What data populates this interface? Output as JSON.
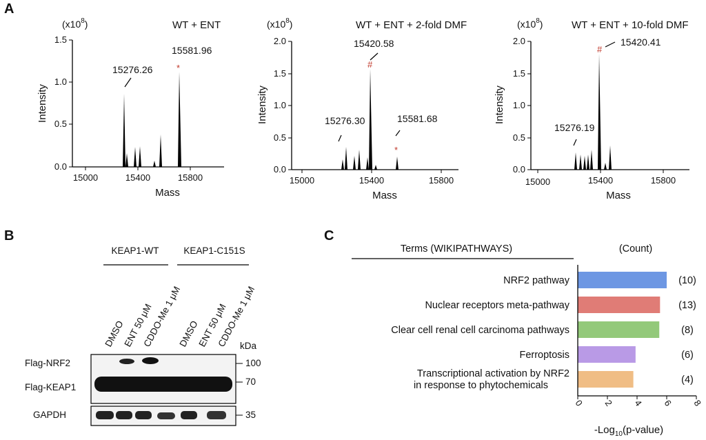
{
  "panels": {
    "A": "A",
    "B": "B",
    "C": "C"
  },
  "mass_spec": [
    {
      "title": "WT + ENT",
      "scale_label": "(x10",
      "scale_exp": "8",
      "scale_close": ")",
      "ylabel": "Intensity",
      "xlabel": "Mass",
      "yticks": [
        "0.0",
        "0.5",
        "1.0",
        "1.5"
      ],
      "xticks": [
        "15000",
        "15400",
        "15800"
      ],
      "labels": [
        "15276.26",
        "15581.96"
      ],
      "marker": "*"
    },
    {
      "title": "WT + ENT + 2-fold DMF",
      "scale_label": "(x10",
      "scale_exp": "8",
      "scale_close": ")",
      "ylabel": "Intensity",
      "xlabel": "Mass",
      "yticks": [
        "0.0",
        "0.5",
        "1.0",
        "1.5",
        "2.0"
      ],
      "xticks": [
        "15000",
        "15400",
        "15800"
      ],
      "labels": [
        "15420.58",
        "15276.30",
        "15581.68"
      ],
      "markers": [
        "#",
        "*"
      ]
    },
    {
      "title": "WT + ENT + 10-fold DMF",
      "scale_label": "(x10",
      "scale_exp": "8",
      "scale_close": ")",
      "ylabel": "Intensity",
      "xlabel": "Mass",
      "yticks": [
        "0.0",
        "0.5",
        "1.0",
        "1.5",
        "2.0"
      ],
      "xticks": [
        "15000",
        "15400",
        "15800"
      ],
      "labels": [
        "15420.41",
        "15276.19"
      ],
      "marker": "#"
    }
  ],
  "western": {
    "groups": [
      "KEAP1-WT",
      "KEAP1-C151S"
    ],
    "lanes": [
      "DMSO",
      "ENT 50 μM",
      "CDDO-Me 1 μM",
      "DMSO",
      "ENT 50 μM",
      "CDDO-Me 1 μM"
    ],
    "rows": [
      "Flag-NRF2",
      "Flag-KEAP1",
      "GAPDH"
    ],
    "kda_label": "kDa",
    "kda": [
      "100",
      "70",
      "35"
    ]
  },
  "chart_data": {
    "type": "bar",
    "header_terms": "Terms (WIKIPATHWAYS)",
    "header_count": "(Count)",
    "categories": [
      "NRF2 pathway",
      "Nuclear receptors meta-pathway",
      "Clear cell renal cell carcinoma pathways",
      "Ferroptosis",
      "Transcriptional activation by NRF2 in response to phytochemicals"
    ],
    "category_lines": [
      [
        "NRF2 pathway"
      ],
      [
        "Nuclear receptors meta-pathway"
      ],
      [
        "Clear cell renal cell carcinoma pathways"
      ],
      [
        "Ferroptosis"
      ],
      [
        "Transcriptional activation by NRF2",
        "in response to phytochemicals"
      ]
    ],
    "values": [
      6.0,
      5.55,
      5.5,
      3.9,
      3.75
    ],
    "counts": [
      "(10)",
      "(13)",
      "(8)",
      "(6)",
      "(4)"
    ],
    "colors": [
      "#6d97e3",
      "#e07c76",
      "#93c97a",
      "#b99ae6",
      "#f0bd85"
    ],
    "xlabel_prefix": "-Log",
    "xlabel_sub": "10",
    "xlabel_suffix": "(p-value)",
    "xticks": [
      "0",
      "2",
      "4",
      "6",
      "8"
    ],
    "xlim": [
      0,
      8
    ]
  }
}
